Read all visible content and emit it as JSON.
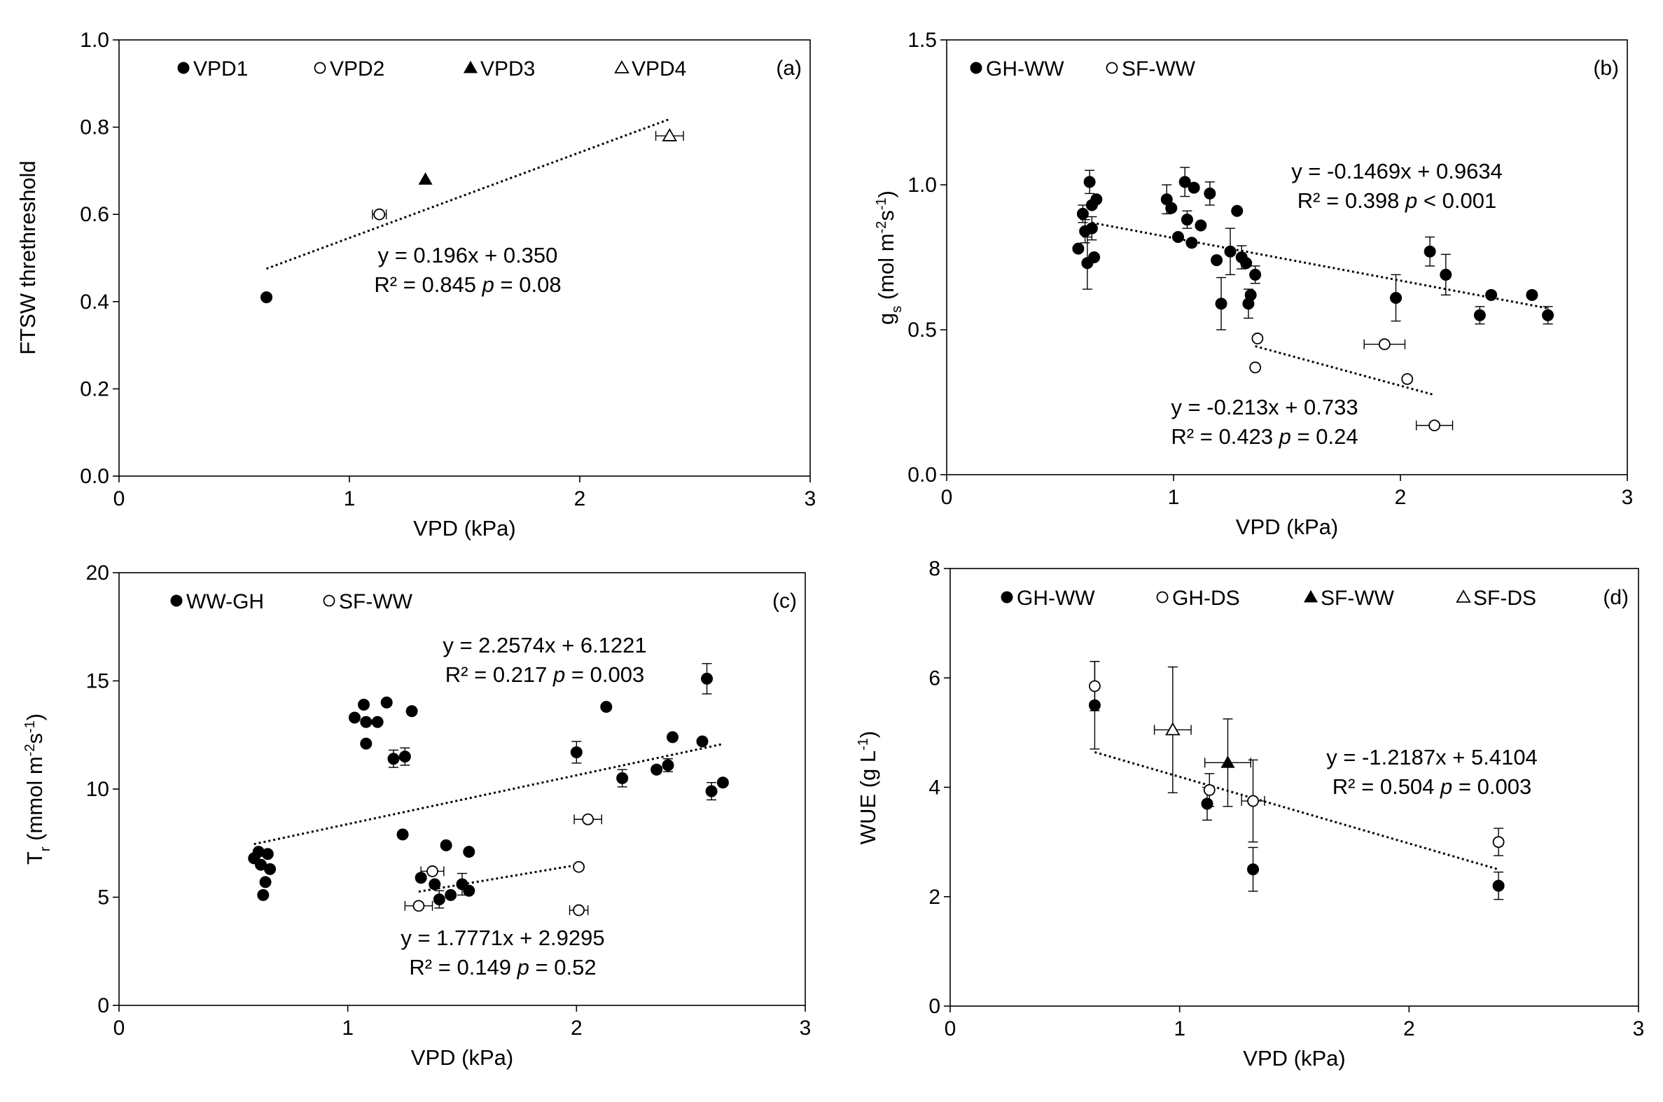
{
  "figure": {
    "description_label": "Four-panel scatter figure of plant responses versus VPD"
  },
  "chart_data": [
    {
      "panel": "(a)",
      "type": "scatter",
      "xlabel": "VPD (kPa)",
      "ylabel": "FTSW threthreshold",
      "xlim": [
        0,
        3
      ],
      "ylim": [
        0,
        1.0
      ],
      "xticks": [
        "0",
        "1",
        "2",
        "3"
      ],
      "yticks": [
        "0.0",
        "0.2",
        "0.4",
        "0.6",
        "0.8",
        "1.0"
      ],
      "legend": [
        {
          "label": "VPD1",
          "marker": "filled-circle"
        },
        {
          "label": "VPD2",
          "marker": "open-circle"
        },
        {
          "label": "VPD3",
          "marker": "filled-triangle"
        },
        {
          "label": "VPD4",
          "marker": "open-triangle"
        }
      ],
      "series": [
        {
          "name": "VPD1",
          "marker": "filled-circle",
          "points": [
            {
              "x": 0.64,
              "y": 0.41
            }
          ]
        },
        {
          "name": "VPD2",
          "marker": "open-circle",
          "points": [
            {
              "x": 1.13,
              "y": 0.6,
              "xerr": 0.03
            }
          ]
        },
        {
          "name": "VPD3",
          "marker": "filled-triangle",
          "points": [
            {
              "x": 1.33,
              "y": 0.68
            }
          ]
        },
        {
          "name": "VPD4",
          "marker": "open-triangle",
          "points": [
            {
              "x": 2.39,
              "y": 0.78,
              "xerr": 0.06
            }
          ]
        }
      ],
      "trendlines": [
        {
          "x_range": [
            0.64,
            2.39
          ],
          "slope": 0.196,
          "intercept": 0.35,
          "equation": "y = 0.196x + 0.350",
          "r2_text": "R² = 0.845",
          "p_text": "p = 0.08"
        }
      ]
    },
    {
      "panel": "(b)",
      "type": "scatter",
      "xlabel": "VPD (kPa)",
      "ylabel_parts": [
        "g",
        "s",
        " (mol m",
        "-2",
        "s",
        "-1",
        ")"
      ],
      "xlim": [
        0,
        3
      ],
      "ylim": [
        0,
        1.5
      ],
      "xticks": [
        "0",
        "1",
        "2",
        "3"
      ],
      "yticks": [
        "0.0",
        "0.5",
        "1.0",
        "1.5"
      ],
      "legend": [
        {
          "label": "GH-WW",
          "marker": "filled-circle"
        },
        {
          "label": "SF-WW",
          "marker": "open-circle"
        }
      ],
      "series": [
        {
          "name": "GH-WW",
          "marker": "filled-circle",
          "points": [
            {
              "x": 0.58,
              "y": 0.78
            },
            {
              "x": 0.6,
              "y": 0.9,
              "yerr": 0.03
            },
            {
              "x": 0.61,
              "y": 0.84,
              "yerr": 0.04
            },
            {
              "x": 0.62,
              "y": 0.73,
              "yerr": 0.09
            },
            {
              "x": 0.63,
              "y": 1.01,
              "yerr": 0.04
            },
            {
              "x": 0.64,
              "y": 0.85,
              "yerr": 0.04
            },
            {
              "x": 0.64,
              "y": 0.93
            },
            {
              "x": 0.65,
              "y": 0.75
            },
            {
              "x": 0.66,
              "y": 0.95
            },
            {
              "x": 0.97,
              "y": 0.95,
              "yerr": 0.05
            },
            {
              "x": 0.99,
              "y": 0.92
            },
            {
              "x": 1.02,
              "y": 0.82
            },
            {
              "x": 1.05,
              "y": 1.01,
              "yerr": 0.05
            },
            {
              "x": 1.06,
              "y": 0.88,
              "yerr": 0.03
            },
            {
              "x": 1.08,
              "y": 0.8
            },
            {
              "x": 1.09,
              "y": 0.99
            },
            {
              "x": 1.12,
              "y": 0.86
            },
            {
              "x": 1.16,
              "y": 0.97,
              "yerr": 0.04
            },
            {
              "x": 1.19,
              "y": 0.74
            },
            {
              "x": 1.21,
              "y": 0.59,
              "yerr": 0.09
            },
            {
              "x": 1.25,
              "y": 0.77,
              "yerr": 0.08
            },
            {
              "x": 1.28,
              "y": 0.91
            },
            {
              "x": 1.3,
              "y": 0.75,
              "yerr": 0.04
            },
            {
              "x": 1.32,
              "y": 0.73
            },
            {
              "x": 1.33,
              "y": 0.59,
              "yerr": 0.05
            },
            {
              "x": 1.34,
              "y": 0.62
            },
            {
              "x": 1.36,
              "y": 0.69,
              "yerr": 0.03
            },
            {
              "x": 1.98,
              "y": 0.61,
              "yerr": 0.08
            },
            {
              "x": 2.13,
              "y": 0.77,
              "yerr": 0.05
            },
            {
              "x": 2.2,
              "y": 0.69,
              "yerr": 0.07
            },
            {
              "x": 2.35,
              "y": 0.55,
              "yerr": 0.03
            },
            {
              "x": 2.4,
              "y": 0.62
            },
            {
              "x": 2.58,
              "y": 0.62
            },
            {
              "x": 2.65,
              "y": 0.55,
              "yerr": 0.03
            }
          ]
        },
        {
          "name": "SF-WW",
          "marker": "open-circle",
          "points": [
            {
              "x": 1.37,
              "y": 0.47
            },
            {
              "x": 1.36,
              "y": 0.37
            },
            {
              "x": 1.93,
              "y": 0.45,
              "xerr": 0.09
            },
            {
              "x": 2.03,
              "y": 0.33
            },
            {
              "x": 2.15,
              "y": 0.17,
              "xerr": 0.08
            }
          ]
        }
      ],
      "trendlines": [
        {
          "x_range": [
            0.64,
            2.65
          ],
          "slope": -0.1469,
          "intercept": 0.9634,
          "equation": "y = -0.1469x + 0.9634",
          "r2_text": "R² = 0.398",
          "p_text": "p < 0.001"
        },
        {
          "x_range": [
            1.36,
            2.15
          ],
          "slope": -0.213,
          "intercept": 0.733,
          "equation": "y = -0.213x + 0.733",
          "r2_text": "R² = 0.423",
          "p_text": "p = 0.24"
        }
      ]
    },
    {
      "panel": "(c)",
      "type": "scatter",
      "xlabel": "VPD (kPa)",
      "ylabel_parts": [
        "T",
        "r",
        " (mmol m",
        "-2",
        "s",
        "-1",
        ")"
      ],
      "xlim": [
        0,
        3
      ],
      "ylim": [
        0,
        20
      ],
      "xticks": [
        "0",
        "1",
        "2",
        "3"
      ],
      "yticks": [
        "0",
        "5",
        "10",
        "15",
        "20"
      ],
      "legend": [
        {
          "label": "WW-GH",
          "marker": "filled-circle"
        },
        {
          "label": "SF-WW",
          "marker": "open-circle"
        }
      ],
      "series": [
        {
          "name": "WW-GH",
          "marker": "filled-circle",
          "points": [
            {
              "x": 0.59,
              "y": 6.8
            },
            {
              "x": 0.61,
              "y": 7.1
            },
            {
              "x": 0.62,
              "y": 6.5
            },
            {
              "x": 0.63,
              "y": 5.1
            },
            {
              "x": 0.64,
              "y": 5.7
            },
            {
              "x": 0.65,
              "y": 7.0
            },
            {
              "x": 0.66,
              "y": 6.3
            },
            {
              "x": 1.03,
              "y": 13.3
            },
            {
              "x": 1.07,
              "y": 13.9
            },
            {
              "x": 1.08,
              "y": 13.1
            },
            {
              "x": 1.08,
              "y": 12.1
            },
            {
              "x": 1.13,
              "y": 13.1
            },
            {
              "x": 1.17,
              "y": 14.0
            },
            {
              "x": 1.2,
              "y": 11.4,
              "yerr": 0.4
            },
            {
              "x": 1.25,
              "y": 11.5,
              "yerr": 0.4
            },
            {
              "x": 1.28,
              "y": 13.6
            },
            {
              "x": 1.24,
              "y": 7.9
            },
            {
              "x": 1.32,
              "y": 5.9
            },
            {
              "x": 1.38,
              "y": 5.6
            },
            {
              "x": 1.4,
              "y": 4.9,
              "yerr": 0.4
            },
            {
              "x": 1.43,
              "y": 7.4
            },
            {
              "x": 1.45,
              "y": 5.1
            },
            {
              "x": 1.5,
              "y": 5.6,
              "yerr": 0.5
            },
            {
              "x": 1.53,
              "y": 5.3
            },
            {
              "x": 1.53,
              "y": 7.1
            },
            {
              "x": 2.0,
              "y": 11.7,
              "yerr": 0.5
            },
            {
              "x": 2.13,
              "y": 13.8
            },
            {
              "x": 2.2,
              "y": 10.5,
              "yerr": 0.4
            },
            {
              "x": 2.35,
              "y": 10.9
            },
            {
              "x": 2.4,
              "y": 11.1,
              "yerr": 0.3
            },
            {
              "x": 2.42,
              "y": 12.4
            },
            {
              "x": 2.55,
              "y": 12.2
            },
            {
              "x": 2.57,
              "y": 15.1,
              "yerr": 0.7
            },
            {
              "x": 2.59,
              "y": 9.9,
              "yerr": 0.4
            },
            {
              "x": 2.64,
              "y": 10.3
            }
          ]
        },
        {
          "name": "SF-WW",
          "marker": "open-circle",
          "points": [
            {
              "x": 1.31,
              "y": 4.6,
              "xerr": 0.06
            },
            {
              "x": 1.37,
              "y": 6.2,
              "xerr": 0.05
            },
            {
              "x": 2.01,
              "y": 6.4
            },
            {
              "x": 2.01,
              "y": 4.4,
              "xerr": 0.04
            },
            {
              "x": 2.05,
              "y": 8.6,
              "xerr": 0.06
            }
          ]
        }
      ],
      "trendlines": [
        {
          "x_range": [
            0.59,
            2.64
          ],
          "slope": 2.2574,
          "intercept": 6.1221,
          "equation": "y = 2.2574x + 6.1221",
          "r2_text": "R² = 0.217",
          "p_text": "p = 0.003"
        },
        {
          "x_range": [
            1.31,
            2.01
          ],
          "slope": 1.7771,
          "intercept": 2.9295,
          "equation": "y = 1.7771x + 2.9295",
          "r2_text": "R² = 0.149",
          "p_text": "p = 0.52"
        }
      ]
    },
    {
      "panel": "(d)",
      "type": "scatter",
      "xlabel": "VPD (kPa)",
      "ylabel_parts": [
        "WUE (g L",
        "-1",
        ")"
      ],
      "xlim": [
        0,
        3
      ],
      "ylim": [
        0,
        8
      ],
      "xticks": [
        "0",
        "1",
        "2",
        "3"
      ],
      "yticks": [
        "0",
        "2",
        "4",
        "6",
        "8"
      ],
      "legend": [
        {
          "label": "GH-WW",
          "marker": "filled-circle"
        },
        {
          "label": "GH-DS",
          "marker": "open-circle"
        },
        {
          "label": "SF-WW",
          "marker": "filled-triangle"
        },
        {
          "label": "SF-DS",
          "marker": "open-triangle"
        }
      ],
      "series": [
        {
          "name": "GH-WW",
          "marker": "filled-circle",
          "points": [
            {
              "x": 0.63,
              "y": 5.5,
              "yerr": 0.8
            },
            {
              "x": 1.12,
              "y": 3.7,
              "yerr": 0.3
            },
            {
              "x": 1.32,
              "y": 2.5,
              "yerr": 0.4
            },
            {
              "x": 2.39,
              "y": 2.2,
              "yerr": 0.25
            }
          ]
        },
        {
          "name": "GH-DS",
          "marker": "open-circle",
          "points": [
            {
              "x": 0.63,
              "y": 5.85,
              "yerr": 0.45
            },
            {
              "x": 1.13,
              "y": 3.95,
              "yerr": 0.3
            },
            {
              "x": 1.32,
              "y": 3.75,
              "yerr": 0.75,
              "xerr": 0.05
            },
            {
              "x": 2.39,
              "y": 3.0,
              "yerr": 0.25
            }
          ]
        },
        {
          "name": "SF-WW",
          "marker": "filled-triangle",
          "points": [
            {
              "x": 1.21,
              "y": 4.45,
              "yerr": 0.8,
              "xerr": 0.1
            }
          ]
        },
        {
          "name": "SF-DS",
          "marker": "open-triangle",
          "points": [
            {
              "x": 0.97,
              "y": 5.05,
              "yerr": 1.15,
              "xerr": 0.08
            }
          ]
        }
      ],
      "trendlines": [
        {
          "x_range": [
            0.63,
            2.39
          ],
          "slope": -1.2187,
          "intercept": 5.4104,
          "equation": "y = -1.2187x + 5.4104",
          "r2_text": "R² = 0.504",
          "p_text": "p = 0.003"
        }
      ]
    }
  ]
}
